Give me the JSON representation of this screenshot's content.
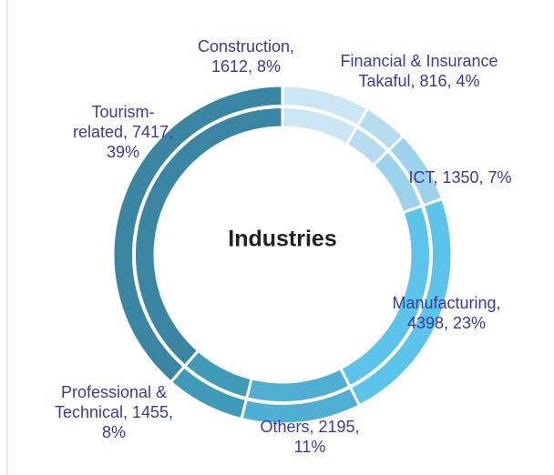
{
  "chart_data": {
    "type": "donut",
    "title": "Industries",
    "values": [
      1612,
      816,
      1350,
      4398,
      2195,
      1455,
      7417
    ],
    "value_labels": [
      "Construction, 1612, 8%",
      "Financial & Insurance Takaful, 816, 4%",
      "ICT, 1350, 7%",
      "Manufacturing, 4398, 23%",
      "Others, 2195, 11%",
      "Professional & Technical, 1455, 8%",
      "Tourism-related, 7417, 39%"
    ],
    "colors": [
      "#cbe7f4",
      "#b5dcef",
      "#9dd2ec",
      "#5cc3ea",
      "#4eafd3",
      "#3f9bb8",
      "#3a86a2"
    ]
  }
}
